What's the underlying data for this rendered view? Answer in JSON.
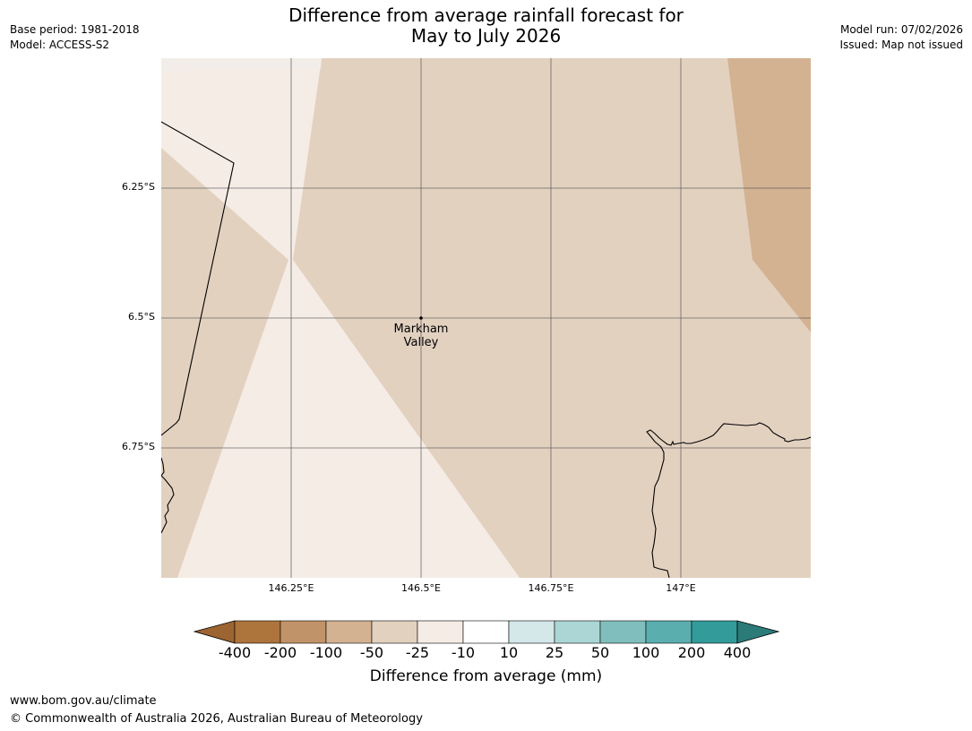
{
  "header": {
    "title_line1": "Difference from average rainfall forecast for",
    "title_line2": "May to July 2026",
    "base_period": "Base period: 1981-2018",
    "model": "Model: ACCESS-S2",
    "model_run": "Model run: 07/02/2026",
    "issued": "Issued: Map not issued"
  },
  "map": {
    "latitude_labels": [
      "6.25°S",
      "6.5°S",
      "6.75°S"
    ],
    "longitude_labels": [
      "146.25°E",
      "146.5°E",
      "146.75°E",
      "147°E"
    ],
    "town": {
      "line1": "Markham",
      "line2": "Valley"
    }
  },
  "legend": {
    "ticks": [
      "-400",
      "-200",
      "-100",
      "-50",
      "-25",
      "-10",
      "10",
      "25",
      "50",
      "100",
      "200",
      "400"
    ],
    "colors": [
      "#9c6430",
      "#ad743c",
      "#c09368",
      "#d3b292",
      "#e3d1c0",
      "#f5ece6",
      "#ffffff",
      "#d5e8e9",
      "#acd6d6",
      "#80bebd",
      "#5aaeae",
      "#339b9a",
      "#2b7b79"
    ],
    "label": "Difference from average (mm)"
  },
  "footer": {
    "url": "www.bom.gov.au/climate",
    "copyright": "© Commonwealth of Australia 2026, Australian Bureau of Meteorology"
  }
}
